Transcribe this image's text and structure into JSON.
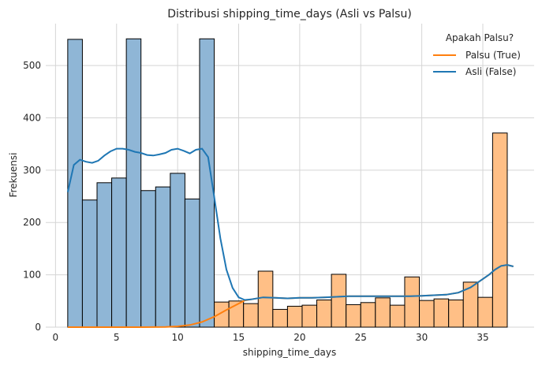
{
  "chart_data": {
    "type": "histogram",
    "title": "Distribusi shipping_time_days (Asli vs Palsu)",
    "xlabel": "shipping_time_days",
    "ylabel": "Frekuensi",
    "xlim": [
      -0.8,
      39.2
    ],
    "ylim": [
      0,
      580
    ],
    "xticks": [
      0,
      5,
      10,
      15,
      20,
      25,
      30,
      35
    ],
    "yticks": [
      0,
      100,
      200,
      300,
      400,
      500
    ],
    "grid": true,
    "legend": {
      "title": "Apakah Palsu?",
      "placement": "top-right",
      "entries": [
        {
          "label": "Palsu (True)",
          "color": "#ff7f0e"
        },
        {
          "label": "Asli (False)",
          "color": "#1f77b4"
        }
      ]
    },
    "series": [
      {
        "name": "Asli (False)",
        "color": "#1f77b4",
        "fill": "#8fb6d6",
        "bins": [
          [
            1.0,
            2.2,
            550
          ],
          [
            2.2,
            3.4,
            243
          ],
          [
            3.4,
            4.6,
            276
          ],
          [
            4.6,
            5.8,
            285
          ],
          [
            5.8,
            7.0,
            551
          ],
          [
            7.0,
            8.2,
            261
          ],
          [
            8.2,
            9.4,
            268
          ],
          [
            9.4,
            10.6,
            294
          ],
          [
            10.6,
            11.8,
            245
          ],
          [
            11.8,
            13.0,
            551
          ]
        ],
        "kde": [
          [
            1.0,
            258
          ],
          [
            1.5,
            310
          ],
          [
            2.0,
            320
          ],
          [
            2.5,
            316
          ],
          [
            3.0,
            314
          ],
          [
            3.5,
            318
          ],
          [
            4.0,
            328
          ],
          [
            4.5,
            336
          ],
          [
            5.0,
            341
          ],
          [
            5.5,
            341
          ],
          [
            6.0,
            339
          ],
          [
            6.5,
            335
          ],
          [
            7.0,
            333
          ],
          [
            7.5,
            329
          ],
          [
            8.0,
            328
          ],
          [
            8.5,
            330
          ],
          [
            9.0,
            333
          ],
          [
            9.5,
            339
          ],
          [
            10.0,
            341
          ],
          [
            10.5,
            337
          ],
          [
            11.0,
            332
          ],
          [
            11.5,
            339
          ],
          [
            12.0,
            341
          ],
          [
            12.5,
            325
          ],
          [
            13.0,
            248
          ],
          [
            13.5,
            170
          ],
          [
            14.0,
            110
          ],
          [
            14.5,
            75
          ],
          [
            15.0,
            57
          ],
          [
            15.5,
            52
          ],
          [
            16.0,
            53
          ],
          [
            17.0,
            57
          ],
          [
            18.0,
            56
          ],
          [
            19.0,
            55
          ],
          [
            20.0,
            56
          ],
          [
            21.0,
            56
          ],
          [
            22.0,
            57
          ],
          [
            23.0,
            58
          ],
          [
            24.0,
            59
          ],
          [
            25.0,
            59
          ],
          [
            26.0,
            59
          ],
          [
            27.0,
            59
          ],
          [
            28.0,
            59
          ],
          [
            29.0,
            59
          ],
          [
            30.0,
            60
          ],
          [
            31.0,
            61
          ],
          [
            32.0,
            62
          ],
          [
            33.0,
            66
          ],
          [
            34.0,
            76
          ],
          [
            35.0,
            92
          ],
          [
            35.5,
            100
          ],
          [
            36.0,
            110
          ],
          [
            36.5,
            117
          ],
          [
            37.0,
            119
          ],
          [
            37.5,
            116
          ]
        ]
      },
      {
        "name": "Palsu (True)",
        "color": "#ff7f0e",
        "fill": "#ffbf86",
        "bins": [
          [
            13.0,
            14.2,
            48
          ],
          [
            14.2,
            15.4,
            50
          ],
          [
            15.4,
            16.6,
            45
          ],
          [
            16.6,
            17.8,
            107
          ],
          [
            17.8,
            19.0,
            34
          ],
          [
            19.0,
            20.2,
            40
          ],
          [
            20.2,
            21.4,
            42
          ],
          [
            21.4,
            22.6,
            52
          ],
          [
            22.6,
            23.8,
            101
          ],
          [
            23.8,
            25.0,
            43
          ],
          [
            25.0,
            26.2,
            47
          ],
          [
            26.2,
            27.4,
            56
          ],
          [
            27.4,
            28.6,
            42
          ],
          [
            28.6,
            29.8,
            96
          ],
          [
            29.8,
            31.0,
            51
          ],
          [
            31.0,
            32.2,
            54
          ],
          [
            32.2,
            33.4,
            52
          ],
          [
            33.4,
            34.6,
            86
          ],
          [
            34.6,
            35.8,
            57
          ],
          [
            35.8,
            37.0,
            371
          ]
        ],
        "kde": [
          [
            1.0,
            0
          ],
          [
            3.0,
            0
          ],
          [
            5.0,
            0
          ],
          [
            7.0,
            0
          ],
          [
            9.0,
            0.5
          ],
          [
            10.0,
            1.5
          ],
          [
            11.0,
            4
          ],
          [
            12.0,
            10
          ],
          [
            13.0,
            20
          ],
          [
            14.0,
            33
          ],
          [
            15.0,
            45
          ],
          [
            15.5,
            51
          ],
          [
            16.0,
            53
          ],
          [
            17.0,
            57
          ],
          [
            18.0,
            56
          ],
          [
            19.0,
            55
          ],
          [
            20.0,
            56
          ],
          [
            21.0,
            56
          ],
          [
            22.0,
            57
          ],
          [
            23.0,
            58
          ],
          [
            24.0,
            59
          ],
          [
            25.0,
            59
          ],
          [
            26.0,
            59
          ],
          [
            27.0,
            59
          ],
          [
            28.0,
            59
          ],
          [
            29.0,
            59
          ],
          [
            30.0,
            60
          ],
          [
            31.0,
            61
          ],
          [
            32.0,
            62
          ],
          [
            33.0,
            66
          ],
          [
            34.0,
            76
          ],
          [
            35.0,
            92
          ],
          [
            35.5,
            100
          ],
          [
            36.0,
            110
          ],
          [
            36.5,
            117
          ],
          [
            37.0,
            119
          ],
          [
            37.5,
            116
          ]
        ]
      }
    ]
  }
}
